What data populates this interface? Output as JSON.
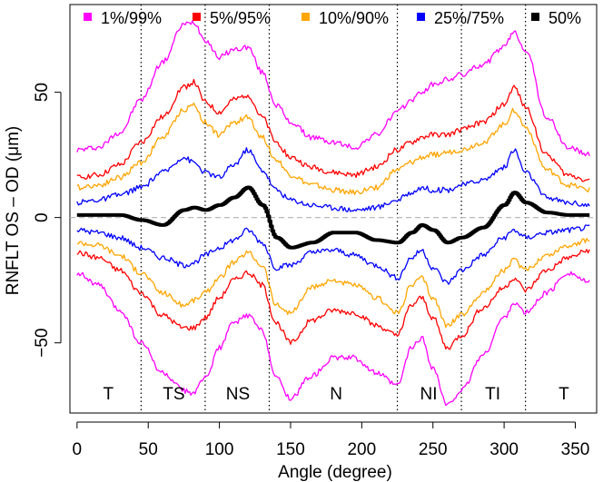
{
  "chart_data": {
    "type": "line",
    "title": "",
    "xlabel": "Angle (degree)",
    "ylabel": "RNFLT OS – OD (μm)",
    "xlim": [
      -5,
      365
    ],
    "ylim": [
      -78,
      85
    ],
    "x_ticks": [
      0,
      50,
      100,
      150,
      200,
      250,
      300,
      350
    ],
    "x_tick_labels": [
      "0",
      "50",
      "100",
      "150",
      "200",
      "250",
      "300",
      "350"
    ],
    "y_ticks": [
      -50,
      0,
      50
    ],
    "y_tick_labels": [
      "−50",
      "0",
      "50"
    ],
    "grid": false,
    "legend_position": "top",
    "reference_line": {
      "y": 0,
      "style": "dashed",
      "color": "#b0b0b0"
    },
    "sector_boundaries": [
      45,
      90,
      135,
      225,
      270,
      315
    ],
    "sector_labels": [
      {
        "label": "T",
        "x": 22
      },
      {
        "label": "TS",
        "x": 68
      },
      {
        "label": "NS",
        "x": 113
      },
      {
        "label": "N",
        "x": 182
      },
      {
        "label": "NI",
        "x": 247
      },
      {
        "label": "TI",
        "x": 292
      },
      {
        "label": "T",
        "x": 342
      }
    ],
    "x": [
      0,
      15,
      30,
      45,
      60,
      75,
      82,
      90,
      100,
      110,
      120,
      130,
      140,
      150,
      165,
      180,
      195,
      210,
      225,
      235,
      242,
      250,
      260,
      270,
      285,
      300,
      307,
      315,
      330,
      345,
      360
    ],
    "series": [
      {
        "name": "1%/99%",
        "color": "#ff00ff",
        "role": "upper",
        "values": [
          27,
          28,
          34,
          47,
          62,
          77,
          78,
          71,
          64,
          67,
          68,
          58,
          45,
          38,
          32,
          30,
          28,
          33,
          42,
          47,
          50,
          53,
          55,
          57,
          61,
          68,
          74,
          67,
          40,
          28,
          25
        ]
      },
      {
        "name": "5%/95%",
        "color": "#ff0000",
        "role": "upper",
        "values": [
          16,
          17,
          21,
          30,
          40,
          52,
          54,
          46,
          42,
          47,
          49,
          40,
          30,
          24,
          20,
          18,
          17,
          20,
          27,
          30,
          32,
          33,
          33,
          35,
          38,
          45,
          52,
          44,
          25,
          17,
          15
        ]
      },
      {
        "name": "10%/90%",
        "color": "#ffa500",
        "role": "upper",
        "values": [
          12,
          13,
          16,
          22,
          32,
          43,
          45,
          38,
          33,
          38,
          40,
          32,
          23,
          17,
          13,
          11,
          10,
          12,
          19,
          22,
          24,
          25,
          26,
          27,
          30,
          37,
          43,
          36,
          19,
          13,
          11
        ]
      },
      {
        "name": "25%/75%",
        "color": "#0000ff",
        "role": "upper",
        "values": [
          6,
          7,
          9,
          12,
          18,
          24,
          22,
          18,
          16,
          21,
          27,
          19,
          11,
          7,
          5,
          4,
          3,
          4,
          7,
          10,
          12,
          11,
          11,
          13,
          15,
          20,
          27,
          18,
          8,
          6,
          5
        ]
      },
      {
        "name": "50%",
        "color": "#000000",
        "role": "median",
        "values": [
          1,
          1,
          1,
          -1,
          -3,
          3,
          4,
          3,
          5,
          8,
          12,
          5,
          -8,
          -12,
          -10,
          -6,
          -6,
          -9,
          -10,
          -6,
          -3,
          -5,
          -10,
          -8,
          -4,
          5,
          10,
          6,
          2,
          1,
          1
        ]
      },
      {
        "name": "25%/75% lower",
        "color": "#0000ff",
        "role": "lower",
        "values": [
          -5,
          -6,
          -8,
          -12,
          -16,
          -19,
          -18,
          -15,
          -12,
          -9,
          -5,
          -10,
          -20,
          -19,
          -14,
          -13,
          -15,
          -19,
          -24,
          -16,
          -13,
          -20,
          -26,
          -21,
          -15,
          -8,
          -5,
          -8,
          -6,
          -5,
          -4
        ]
      },
      {
        "name": "10%/90% lower",
        "color": "#ffa500",
        "role": "lower",
        "values": [
          -10,
          -11,
          -15,
          -22,
          -30,
          -35,
          -33,
          -30,
          -24,
          -18,
          -14,
          -19,
          -35,
          -38,
          -28,
          -25,
          -27,
          -32,
          -38,
          -27,
          -24,
          -32,
          -43,
          -39,
          -30,
          -21,
          -17,
          -21,
          -15,
          -11,
          -9
        ]
      },
      {
        "name": "5%/95% lower",
        "color": "#ff0000",
        "role": "lower",
        "values": [
          -14,
          -16,
          -21,
          -30,
          -39,
          -44,
          -44,
          -40,
          -32,
          -25,
          -22,
          -27,
          -42,
          -50,
          -41,
          -37,
          -38,
          -43,
          -47,
          -35,
          -32,
          -40,
          -52,
          -47,
          -36,
          -28,
          -24,
          -29,
          -21,
          -16,
          -13
        ]
      },
      {
        "name": "1%/99% lower",
        "color": "#ff00ff",
        "role": "lower",
        "values": [
          -22,
          -27,
          -37,
          -50,
          -62,
          -69,
          -70,
          -64,
          -52,
          -42,
          -39,
          -45,
          -64,
          -72,
          -63,
          -56,
          -56,
          -62,
          -67,
          -52,
          -48,
          -60,
          -75,
          -69,
          -55,
          -40,
          -34,
          -38,
          -30,
          -22,
          -26
        ]
      }
    ],
    "legend": [
      {
        "label": "1%/99%",
        "color": "#ff00ff"
      },
      {
        "label": "5%/95%",
        "color": "#ff0000"
      },
      {
        "label": "10%/90%",
        "color": "#ffa500"
      },
      {
        "label": "25%/75%",
        "color": "#0000ff"
      },
      {
        "label": "50%",
        "color": "#000000"
      }
    ]
  }
}
